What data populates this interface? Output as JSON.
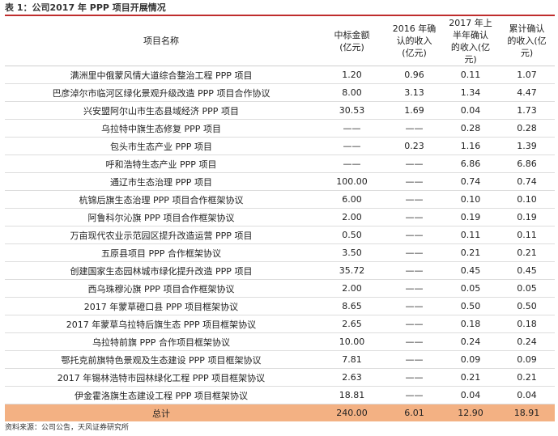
{
  "title": "表 1：公司2017 年 PPP 项目开展情况",
  "table": {
    "headers": [
      "项目名称",
      "中标金额\n(亿元)",
      "2016 年确\n认的收入\n(亿元)",
      "2017 年上\n半年确认\n的收入(亿\n元)",
      "累计确认\n的收入(亿\n元)"
    ],
    "rows": [
      [
        "满洲里中俄蒙风情大道综合整治工程 PPP 项目",
        "1.20",
        "0.96",
        "0.11",
        "1.07"
      ],
      [
        "巴彦淖尔市临河区绿化景观升级改造 PPP 项目合作协议",
        "8.00",
        "3.13",
        "1.34",
        "4.47"
      ],
      [
        "兴安盟阿尔山市生态县域经济 PPP 项目",
        "30.53",
        "1.69",
        "0.04",
        "1.73"
      ],
      [
        "乌拉特中旗生态修复 PPP 项目",
        "——",
        "——",
        "0.28",
        "0.28"
      ],
      [
        "包头市生态产业 PPP 项目",
        "——",
        "0.23",
        "1.16",
        "1.39"
      ],
      [
        "呼和浩特生态产业 PPP 项目",
        "——",
        "——",
        "6.86",
        "6.86"
      ],
      [
        "通辽市生态治理 PPP 项目",
        "100.00",
        "——",
        "0.74",
        "0.74"
      ],
      [
        "杭锦后旗生态治理 PPP 项目合作框架协议",
        "6.00",
        "——",
        "0.10",
        "0.10"
      ],
      [
        "阿鲁科尔沁旗 PPP 项目合作框架协议",
        "2.00",
        "——",
        "0.19",
        "0.19"
      ],
      [
        "万亩现代农业示范园区提升改造运营 PPP 项目",
        "0.50",
        "——",
        "0.11",
        "0.11"
      ],
      [
        "五原县项目 PPP 合作框架协议",
        "3.50",
        "——",
        "0.21",
        "0.21"
      ],
      [
        "创建国家生态园林城市绿化提升改造 PPP 项目",
        "35.72",
        "——",
        "0.45",
        "0.45"
      ],
      [
        "西乌珠穆沁旗 PPP 项目合作框架协议",
        "2.00",
        "——",
        "0.05",
        "0.05"
      ],
      [
        "2017 年蒙草磴口县 PPP 项目框架协议",
        "8.65",
        "——",
        "0.50",
        "0.50"
      ],
      [
        "2017 年蒙草乌拉特后旗生态 PPP 项目框架协议",
        "2.65",
        "——",
        "0.18",
        "0.18"
      ],
      [
        "乌拉特前旗 PPP 合作项目框架协议",
        "10.00",
        "——",
        "0.24",
        "0.24"
      ],
      [
        "鄂托克前旗特色景观及生态建设 PPP 项目框架协议",
        "7.81",
        "——",
        "0.09",
        "0.09"
      ],
      [
        "2017 年锡林浩特市园林绿化工程 PPP 项目框架协议",
        "2.63",
        "——",
        "0.21",
        "0.21"
      ],
      [
        "伊金霍洛旗生态建设工程 PPP 项目框架协议",
        "18.81",
        "——",
        "0.04",
        "0.04"
      ]
    ],
    "total": [
      "总计",
      "240.00",
      "6.01",
      "12.90",
      "18.91"
    ]
  },
  "source": "资料来源：公司公告，天风证券研究所",
  "colors": {
    "accent_rule": "#bf2d2d",
    "total_row_bg": "#f3b183"
  }
}
